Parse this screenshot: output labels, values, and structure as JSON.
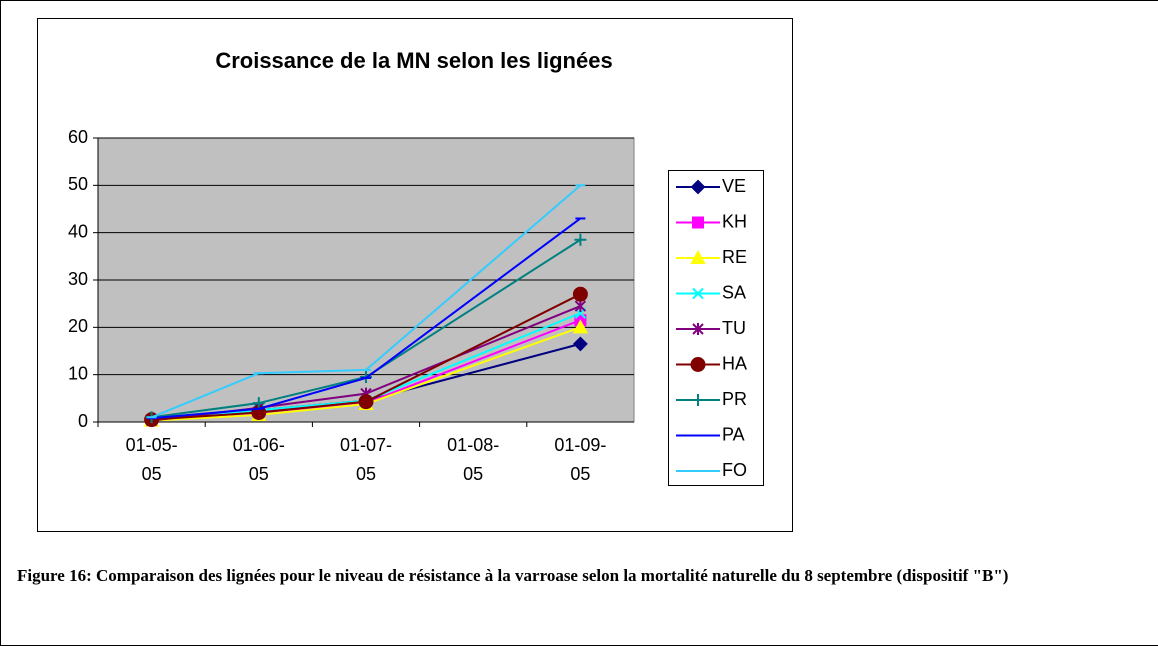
{
  "chart_data": {
    "type": "line",
    "title": "Croissance de la MN selon les lignées",
    "categories": [
      "01-05-05",
      "01-06-05",
      "01-07-05",
      "01-08-05",
      "01-09-05"
    ],
    "ylim": [
      0,
      60
    ],
    "yticks": [
      0,
      10,
      20,
      30,
      40,
      50,
      60
    ],
    "grid": true,
    "connect_gaps": true,
    "legend": "right",
    "plot_background": "#c0c0c0",
    "series": [
      {
        "name": "VE",
        "color": "#000080",
        "marker": "diamond",
        "values": [
          0.5,
          2.5,
          4.5,
          null,
          16.5
        ]
      },
      {
        "name": "KH",
        "color": "#ff00ff",
        "marker": "square",
        "values": [
          0.3,
          2,
          4,
          null,
          21.5
        ]
      },
      {
        "name": "RE",
        "color": "#ffff00",
        "marker": "triangle",
        "values": [
          0.3,
          1.5,
          3.8,
          null,
          20
        ]
      },
      {
        "name": "SA",
        "color": "#00ffff",
        "marker": "x",
        "values": [
          0.5,
          2.5,
          4.5,
          null,
          23
        ]
      },
      {
        "name": "TU",
        "color": "#800080",
        "marker": "star",
        "values": [
          0.3,
          3,
          6,
          null,
          24.5
        ]
      },
      {
        "name": "HA",
        "color": "#800000",
        "marker": "circle",
        "values": [
          0.5,
          2,
          4.3,
          null,
          27
        ]
      },
      {
        "name": "PR",
        "color": "#008080",
        "marker": "plus",
        "values": [
          1,
          4,
          9.5,
          null,
          38.5
        ]
      },
      {
        "name": "PA",
        "color": "#0000ff",
        "marker": "dash",
        "values": [
          0.8,
          2.8,
          9.3,
          null,
          43
        ]
      },
      {
        "name": "FO",
        "color": "#33ccff",
        "marker": "dash",
        "values": [
          1,
          10.3,
          11,
          null,
          50
        ]
      }
    ]
  },
  "caption": "Figure 16: Comparaison des lignées pour le niveau de résistance à la varroase selon la mortalité naturelle du 8 septembre (dispositif \"B\")"
}
